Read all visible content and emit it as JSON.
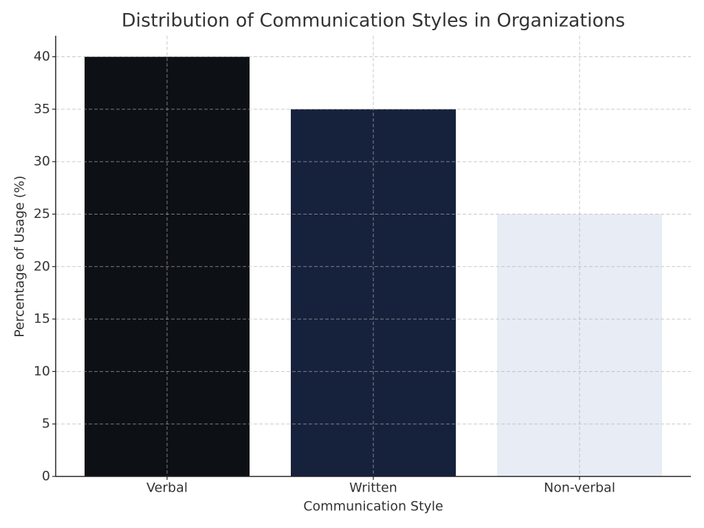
{
  "chart_data": {
    "type": "bar",
    "title": "Distribution of Communication Styles in Organizations",
    "x_label": "Communication Style",
    "y_label": "Percentage of Usage (%)",
    "categories": [
      "Verbal",
      "Written",
      "Non-verbal"
    ],
    "values": [
      40,
      35,
      25
    ],
    "colors": [
      "#0d1015",
      "#16213c",
      "#e8ecf4"
    ],
    "ylim": [
      0,
      42
    ],
    "yticks": [
      0,
      5,
      10,
      15,
      20,
      25,
      30,
      35,
      40
    ],
    "grid": true
  }
}
